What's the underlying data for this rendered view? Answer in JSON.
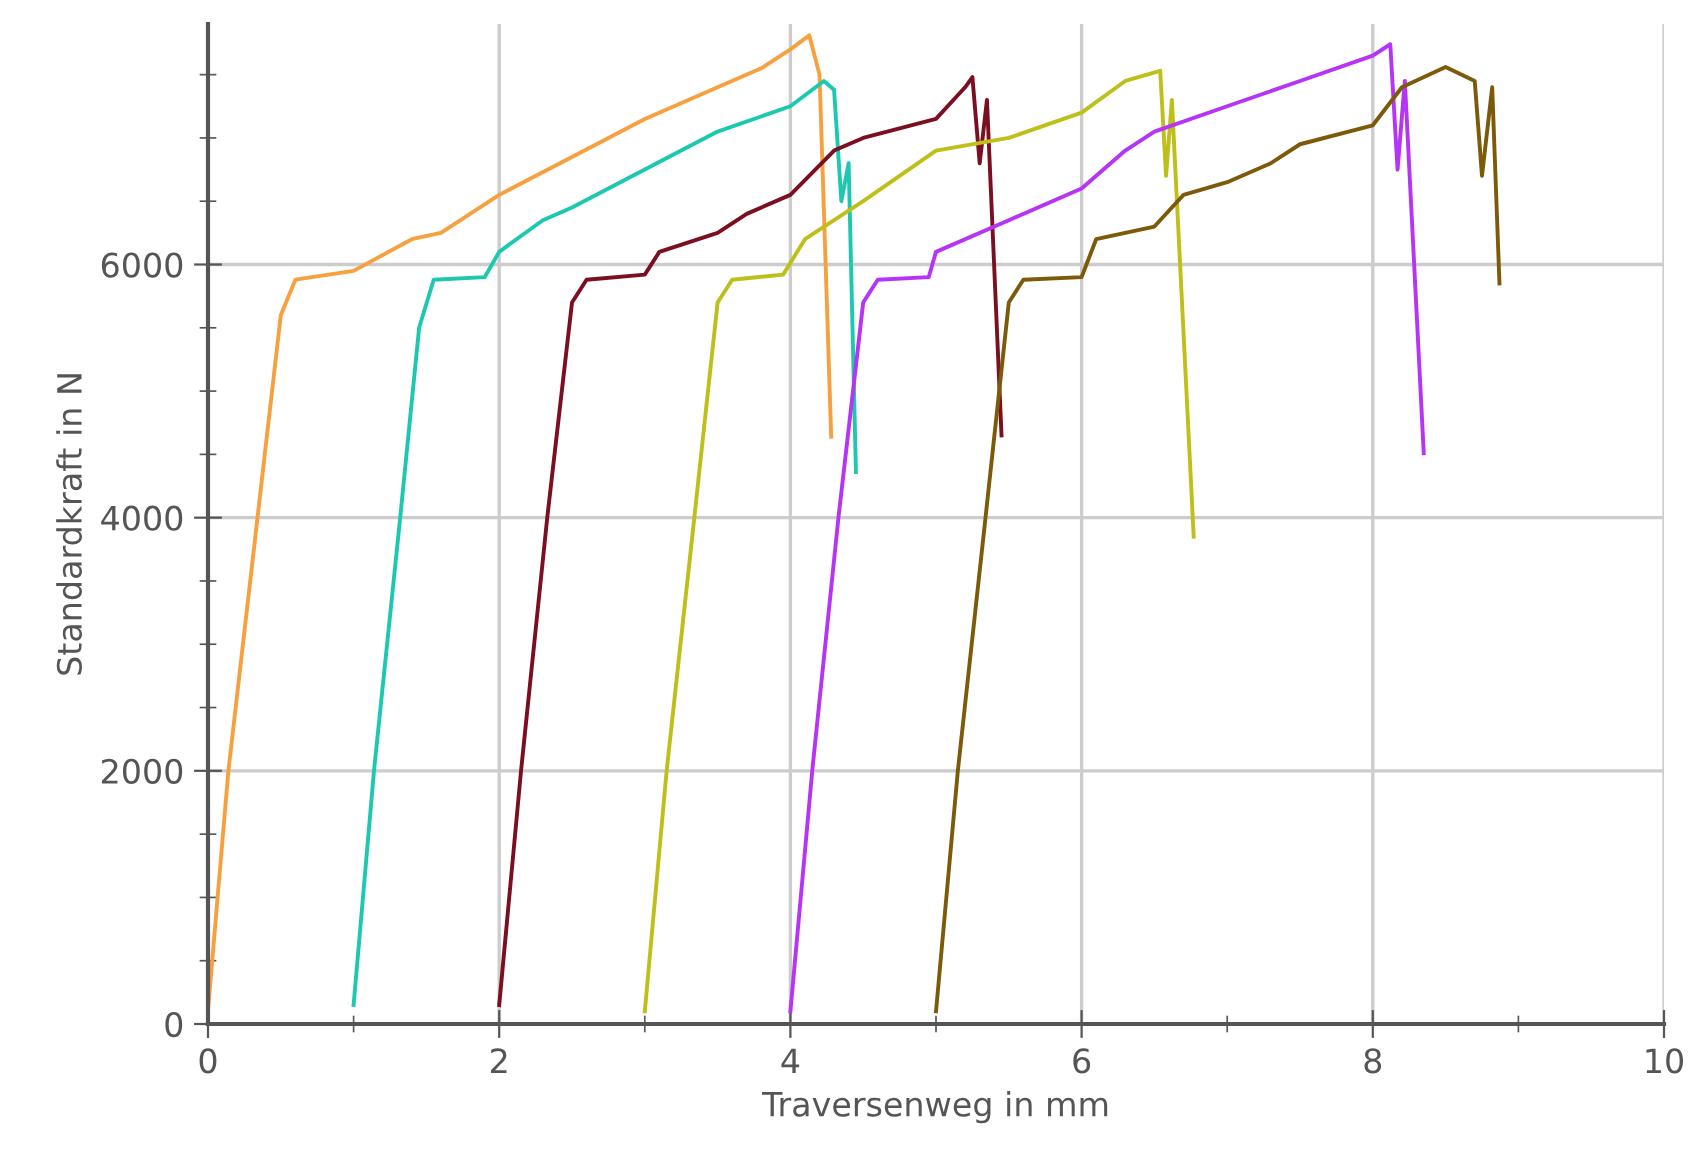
{
  "chart_data": {
    "type": "line",
    "xlabel": "Traversenweg in mm",
    "ylabel": "Standardkraft in N",
    "xlim": [
      0,
      10
    ],
    "ylim": [
      0,
      7900
    ],
    "xticks": [
      0,
      2,
      4,
      6,
      8,
      10
    ],
    "yticks": [
      0,
      2000,
      4000,
      6000
    ],
    "grid": true,
    "marker": "none",
    "line_style": "solid",
    "series": [
      {
        "color": "#f7a040",
        "x": [
          0,
          0.14,
          0.34,
          0.5,
          0.6,
          1.0,
          1.4,
          1.6,
          2.0,
          2.5,
          3.0,
          3.5,
          3.8,
          4.0,
          4.13,
          4.2,
          4.28
        ],
        "values": [
          110,
          2000,
          4000,
          5600,
          5880,
          5950,
          6200,
          6250,
          6550,
          6850,
          7150,
          7400,
          7550,
          7700,
          7810,
          7500,
          4640
        ]
      },
      {
        "color": "#1cc9b0",
        "x": [
          1.0,
          1.14,
          1.32,
          1.45,
          1.55,
          1.9,
          2.0,
          2.3,
          2.5,
          3.0,
          3.5,
          4.0,
          4.23,
          4.3,
          4.35,
          4.4,
          4.45
        ],
        "values": [
          150,
          2000,
          4000,
          5500,
          5880,
          5900,
          6100,
          6350,
          6450,
          6750,
          7050,
          7250,
          7450,
          7380,
          6500,
          6800,
          4360
        ]
      },
      {
        "color": "#7b0f1f",
        "x": [
          2.0,
          2.15,
          2.33,
          2.5,
          2.6,
          3.0,
          3.1,
          3.5,
          3.7,
          4.0,
          4.3,
          4.5,
          5.0,
          5.2,
          5.25,
          5.3,
          5.35,
          5.45
        ],
        "values": [
          150,
          2000,
          4000,
          5700,
          5880,
          5920,
          6100,
          6250,
          6400,
          6550,
          6900,
          7000,
          7150,
          7400,
          7480,
          6800,
          7300,
          4650
        ]
      },
      {
        "color": "#bfbf1a",
        "x": [
          3.0,
          3.15,
          3.34,
          3.5,
          3.6,
          3.95,
          4.1,
          4.5,
          5.0,
          5.5,
          6.0,
          6.3,
          6.54,
          6.58,
          6.62,
          6.77
        ],
        "values": [
          100,
          2000,
          4000,
          5700,
          5880,
          5920,
          6200,
          6500,
          6900,
          7000,
          7200,
          7450,
          7530,
          6700,
          7300,
          3850
        ]
      },
      {
        "color": "#b534f5",
        "x": [
          4.0,
          4.15,
          4.33,
          4.5,
          4.6,
          4.95,
          5.0,
          5.5,
          6.0,
          6.3,
          6.5,
          7.0,
          7.5,
          8.0,
          8.12,
          8.17,
          8.22,
          8.35
        ],
        "values": [
          100,
          2000,
          4000,
          5700,
          5880,
          5900,
          6100,
          6350,
          6600,
          6900,
          7050,
          7250,
          7450,
          7650,
          7740,
          6750,
          7450,
          4510
        ]
      },
      {
        "color": "#7d5a0a",
        "x": [
          5.0,
          5.15,
          5.34,
          5.5,
          5.6,
          6.0,
          6.1,
          6.5,
          6.7,
          7.0,
          7.3,
          7.5,
          8.0,
          8.2,
          8.5,
          8.7,
          8.75,
          8.82,
          8.87
        ],
        "values": [
          100,
          2000,
          4000,
          5700,
          5880,
          5900,
          6200,
          6300,
          6550,
          6650,
          6800,
          6950,
          7100,
          7400,
          7560,
          7450,
          6700,
          7400,
          5850
        ]
      }
    ]
  }
}
